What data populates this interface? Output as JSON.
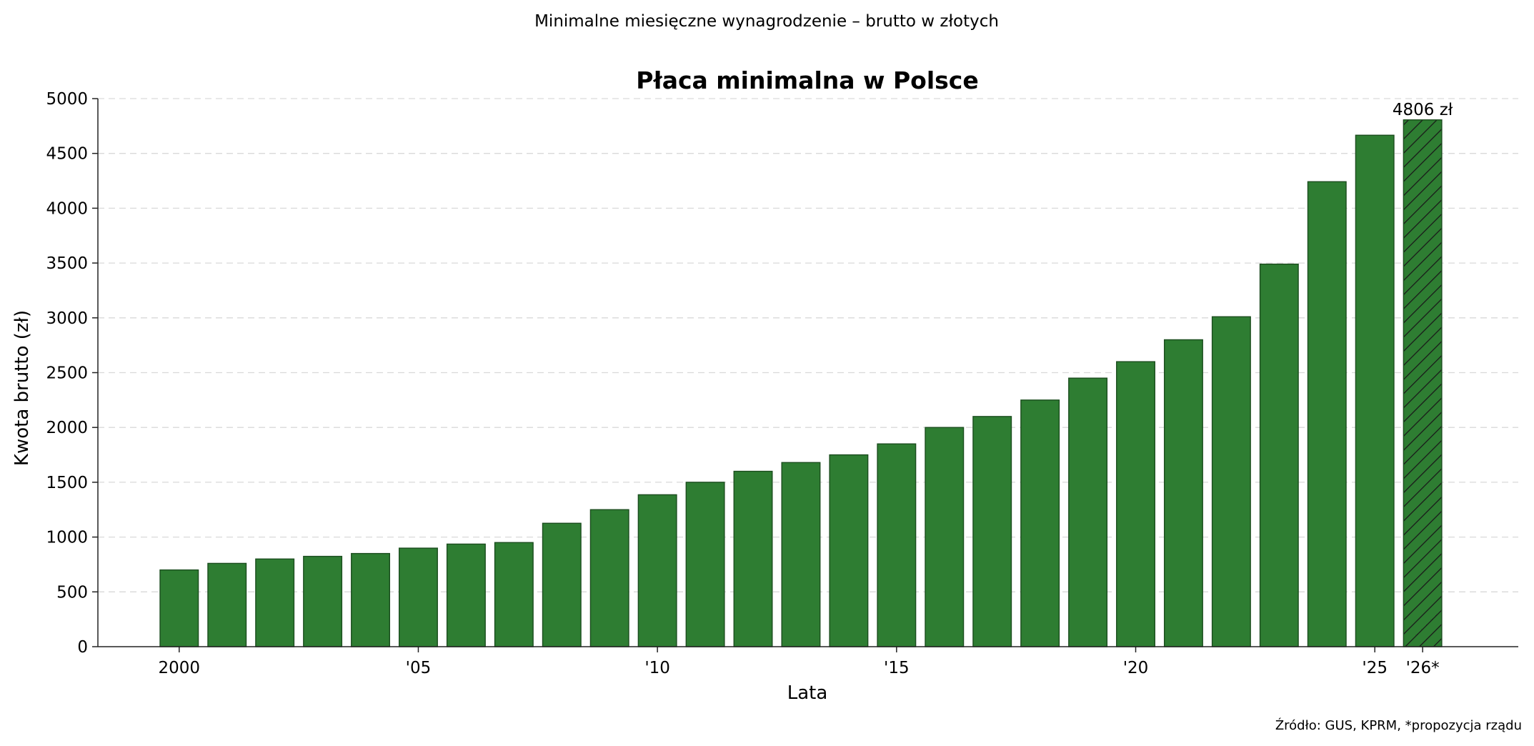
{
  "page": {
    "suptitle": "Minimalne miesięczne wynagrodzenie – brutto w złotych",
    "source": "Źródło: GUS, KPRM, *propozycja rządu"
  },
  "colors": {
    "bar": "#2e7d32",
    "bar_edge": "#1b4d1e",
    "hatch": "#1a1a1a"
  },
  "chart_data": {
    "type": "bar",
    "title": "Płaca minimalna w Polsce",
    "xlabel": "Lata",
    "ylabel": "Kwota brutto (zł)",
    "ylim": [
      0,
      5000
    ],
    "yticks": [
      0,
      500,
      1000,
      1500,
      2000,
      2500,
      3000,
      3500,
      4000,
      4500,
      5000
    ],
    "grid": "y-dashed",
    "x": [
      2000,
      2001,
      2002,
      2003,
      2004,
      2005,
      2006,
      2007,
      2008,
      2009,
      2010,
      2011,
      2012,
      2013,
      2014,
      2015,
      2016,
      2017,
      2018,
      2019,
      2020,
      2021,
      2022,
      2023,
      2024,
      2025,
      2026
    ],
    "values": [
      700,
      760,
      800,
      824,
      850,
      899,
      936,
      950,
      1126,
      1250,
      1386,
      1500,
      1600,
      1680,
      1750,
      1850,
      2000,
      2100,
      2250,
      2450,
      2600,
      2800,
      3010,
      3490,
      4242,
      4666,
      4806
    ],
    "xticks": [
      {
        "x": 2000,
        "label": "2000"
      },
      {
        "x": 2005,
        "label": "'05"
      },
      {
        "x": 2010,
        "label": "'10"
      },
      {
        "x": 2015,
        "label": "'15"
      },
      {
        "x": 2020,
        "label": "'20"
      },
      {
        "x": 2025,
        "label": "'25"
      },
      {
        "x": 2026,
        "label": "'26*"
      }
    ],
    "hatched": [
      2026
    ],
    "annotations": [
      {
        "x": 2026,
        "text": "4806 zł"
      }
    ]
  }
}
